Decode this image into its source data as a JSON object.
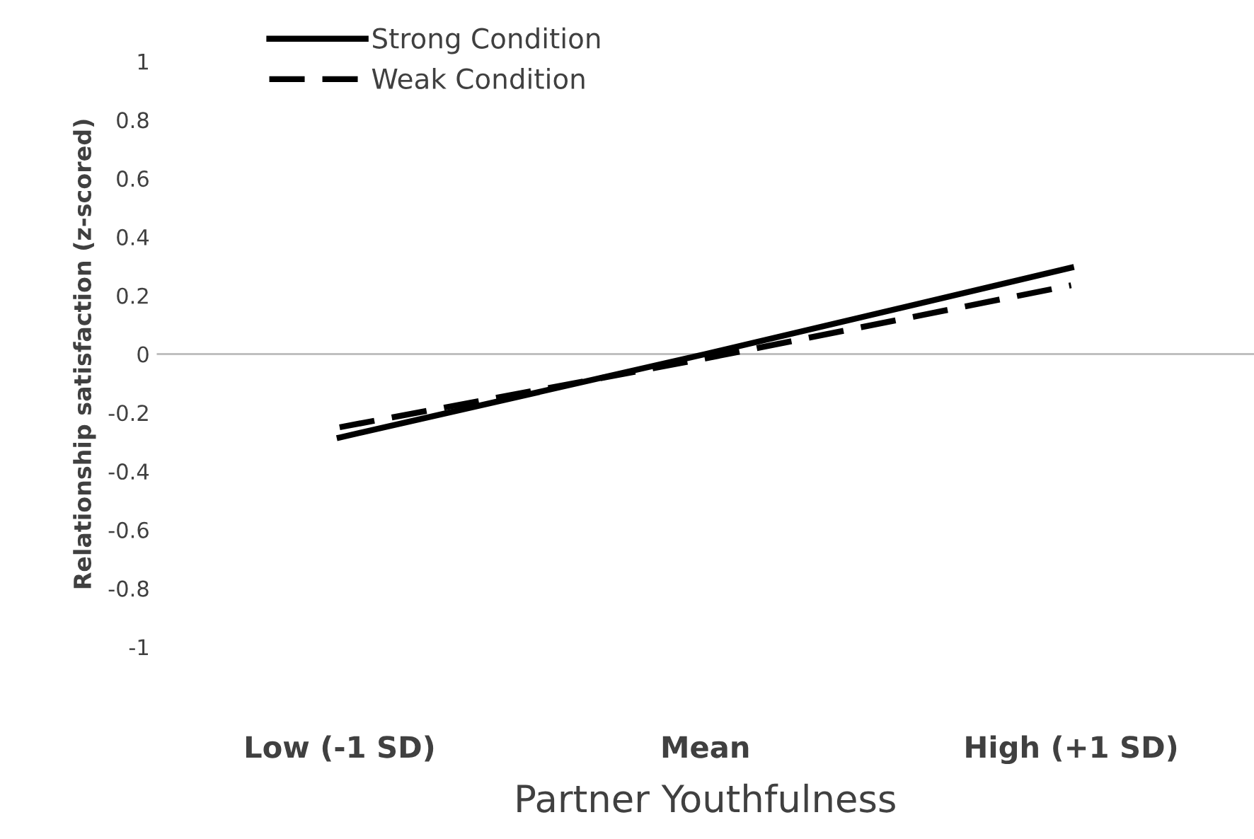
{
  "chart_data": {
    "type": "line",
    "xlabel": "Partner Youthfulness",
    "ylabel": "Relationship satisfaction (z-scored)",
    "categories": [
      "Low (-1 SD)",
      "Mean",
      "High (+1 SD)"
    ],
    "series": [
      {
        "name": "Strong Condition",
        "color": "#000000",
        "values": [
          -0.285,
          0.0,
          0.295
        ],
        "line_style": "solid"
      },
      {
        "name": "Weak Condition",
        "color": "#000000",
        "values": [
          -0.25,
          -0.015,
          0.235
        ],
        "line_style": "dashed"
      }
    ],
    "ylim": [
      -1,
      1
    ],
    "yticks": [
      1,
      0.8,
      0.6,
      0.4,
      0.2,
      0,
      -0.2,
      -0.4,
      -0.6,
      -0.8,
      -1
    ],
    "ref_lines": [
      {
        "axis": "y",
        "value": 0,
        "color": "#bfbfbf"
      }
    ],
    "grid": false,
    "legend": "top left",
    "marker": "none"
  }
}
